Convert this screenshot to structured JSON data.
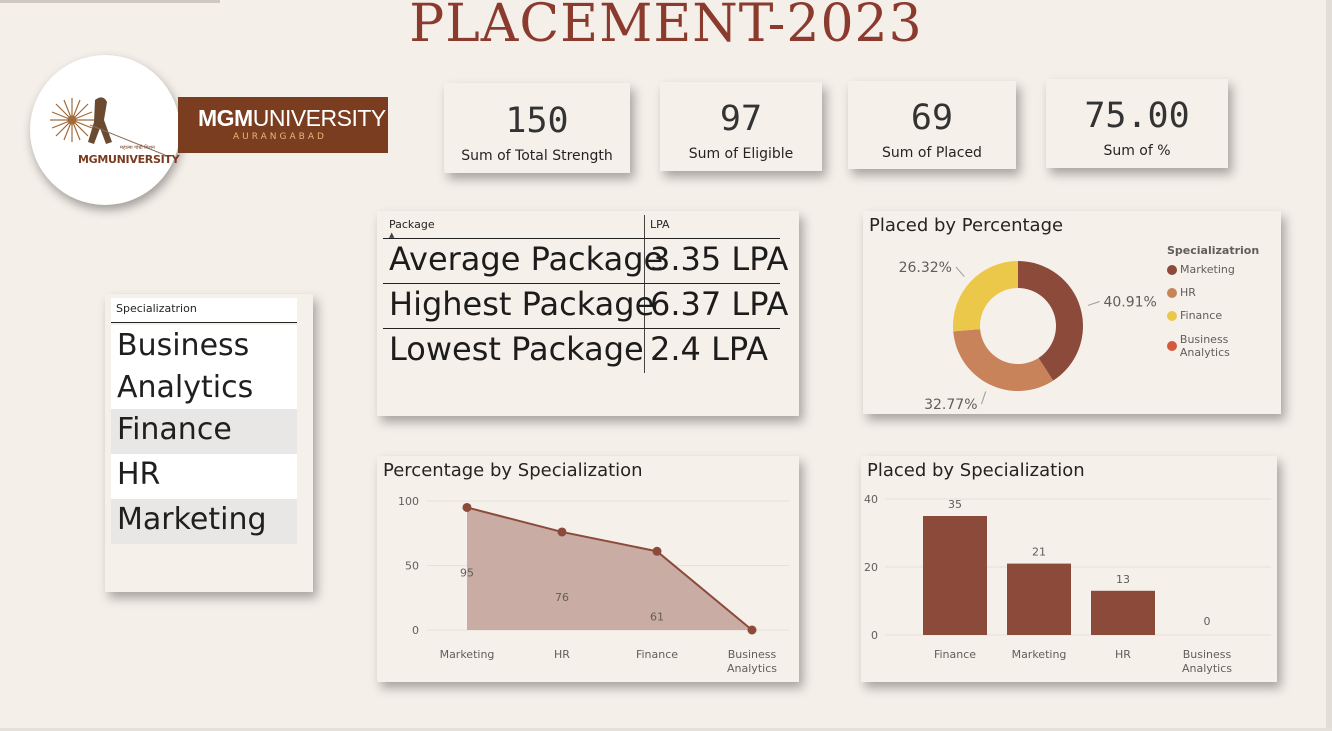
{
  "title": "PLACEMENT-2023",
  "logo": {
    "wordmark": "MGMUNIVERSITY",
    "banner_name_bold": "MGM",
    "banner_name_rest": "UNIVERSITY",
    "banner_city": "AURANGABAD"
  },
  "kpis": [
    {
      "value": "150",
      "label": "Sum of Total Strength"
    },
    {
      "value": "97",
      "label": "Sum of Eligible"
    },
    {
      "value": "69",
      "label": "Sum of Placed"
    },
    {
      "value": "75.00",
      "label": "Sum of %"
    }
  ],
  "slicer": {
    "header": "Specializatrion",
    "items": [
      {
        "label": "Business Analytics"
      },
      {
        "label": "Finance"
      },
      {
        "label": "HR"
      },
      {
        "label": "Marketing"
      }
    ]
  },
  "package_table": {
    "col1": "Package",
    "col2": "LPA",
    "rows": [
      {
        "name": "Average Package",
        "value": "3.35 LPA"
      },
      {
        "name": "Highest Package",
        "value": "6.37 LPA"
      },
      {
        "name": "Lowest Package",
        "value": "2.4 LPA"
      }
    ]
  },
  "colors": {
    "brown": "#8b4a3a",
    "tan": "#c8835a",
    "yellow": "#ebc84a",
    "red": "#d45a3c",
    "title": "#8b3a2e"
  },
  "chart_data": [
    {
      "type": "pie",
      "title": "Placed by Percentage",
      "legend_title": "Specializatrion",
      "legend_position": "right",
      "categories": [
        "Marketing",
        "HR",
        "Finance",
        "Business Analytics"
      ],
      "values": [
        40.91,
        32.77,
        26.32,
        0
      ],
      "labels": [
        "40.91%",
        "32.77%",
        "26.32%",
        ""
      ]
    },
    {
      "type": "area",
      "title": "Percentage by Specialization",
      "categories": [
        "Marketing",
        "HR",
        "Finance",
        "Business Analytics"
      ],
      "values": [
        95,
        76,
        61,
        0
      ],
      "data_labels": [
        "95",
        "76",
        "61",
        ""
      ],
      "yticks": [
        "0",
        "50",
        "100"
      ],
      "ylim": [
        0,
        100
      ]
    },
    {
      "type": "bar",
      "title": "Placed by Specialization",
      "categories": [
        "Finance",
        "Marketing",
        "HR",
        "Business Analytics"
      ],
      "values": [
        35,
        21,
        13,
        0
      ],
      "yticks": [
        "0",
        "20",
        "40"
      ],
      "ylim": [
        0,
        40
      ]
    }
  ]
}
